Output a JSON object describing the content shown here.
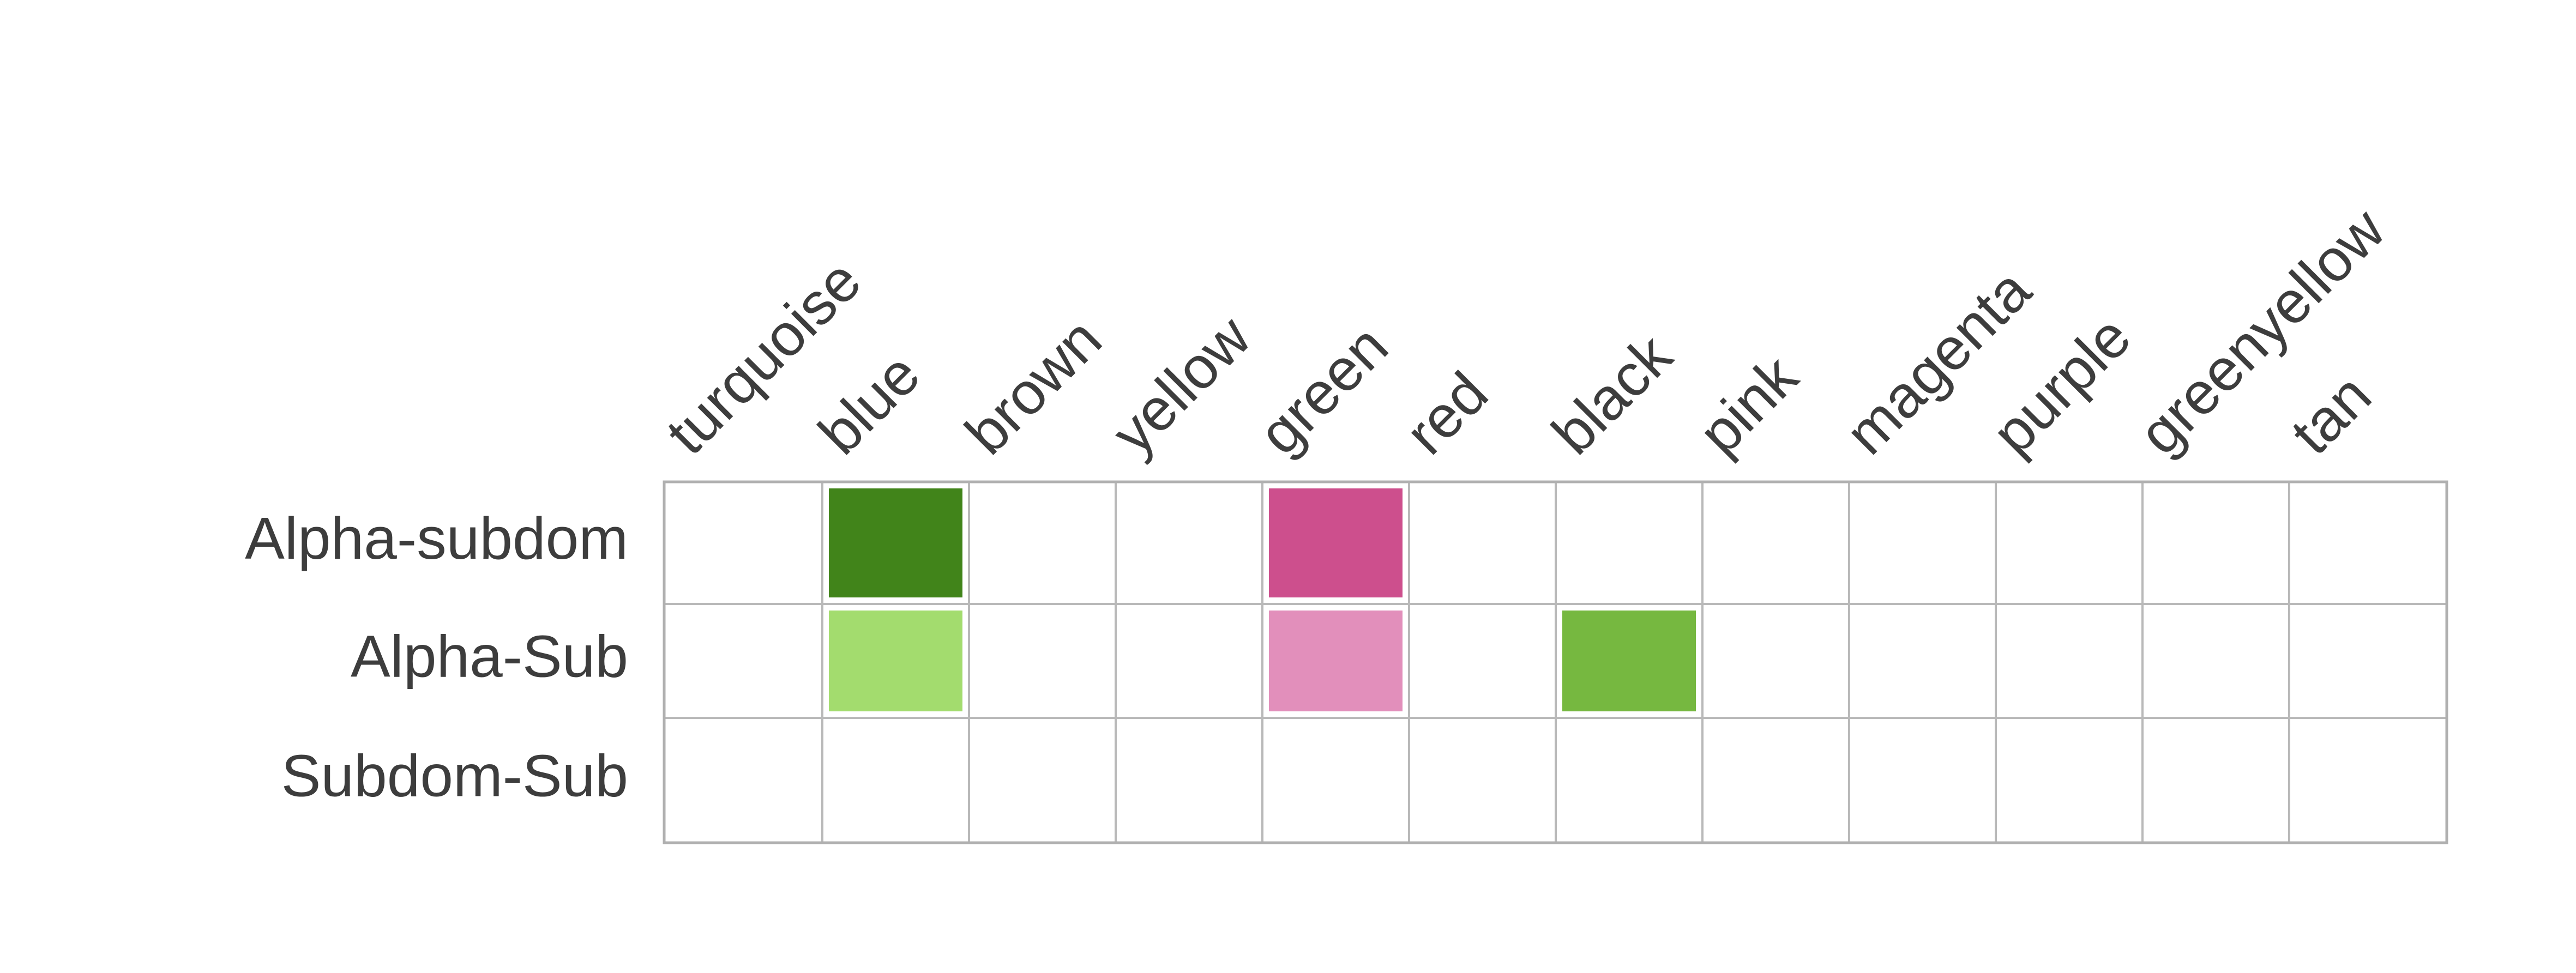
{
  "chart_data": {
    "type": "heatmap",
    "title": "",
    "xlabel": "",
    "ylabel": "",
    "columns": [
      "turquoise",
      "blue",
      "brown",
      "yellow",
      "green",
      "red",
      "black",
      "pink",
      "magenta",
      "purple",
      "greenyellow",
      "tan"
    ],
    "rows": [
      "Alpha-subdom",
      "Alpha-Sub",
      "Subdom-Sub"
    ],
    "cells": [
      {
        "row": "Alpha-subdom",
        "column": "blue",
        "color": "#41841a"
      },
      {
        "row": "Alpha-subdom",
        "column": "green",
        "color": "#cd4f8d"
      },
      {
        "row": "Alpha-Sub",
        "column": "blue",
        "color": "#a3dc6e"
      },
      {
        "row": "Alpha-Sub",
        "column": "green",
        "color": "#e28fbb"
      },
      {
        "row": "Alpha-Sub",
        "column": "black",
        "color": "#76b840"
      }
    ],
    "grid": true,
    "legend": false
  }
}
